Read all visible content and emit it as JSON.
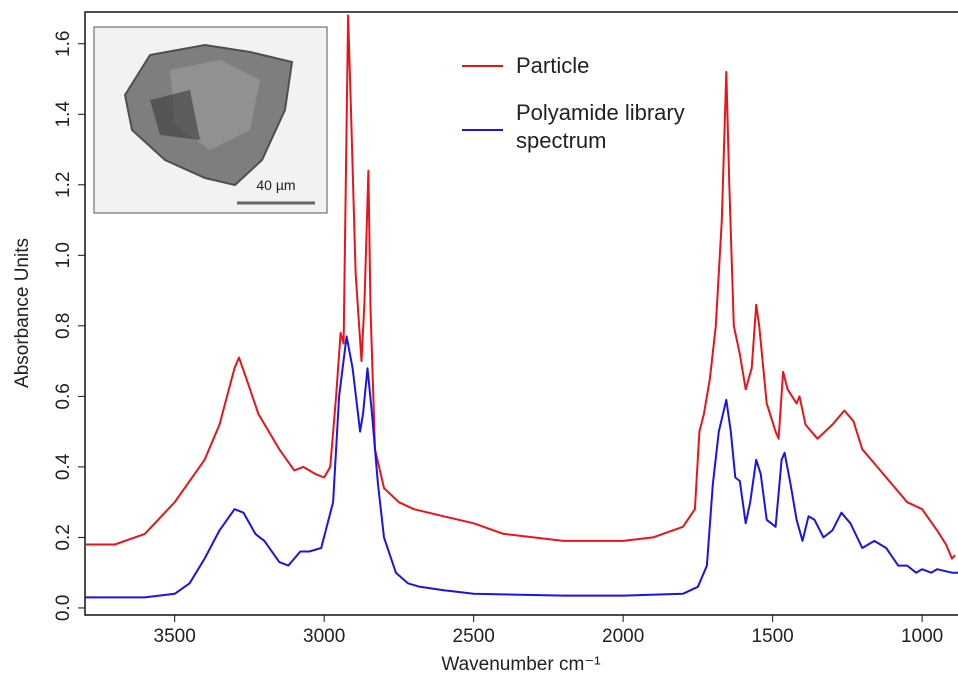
{
  "chart_data": {
    "type": "line",
    "x_label": "Wavenumber cm⁻¹",
    "y_label": "Absorbance Units",
    "inset_scale_label": "40 µm",
    "xlim": [
      3800,
      880
    ],
    "ylim": [
      -0.02,
      1.69
    ],
    "xticks": [
      3500,
      3000,
      2500,
      2000,
      1500,
      1000
    ],
    "yticks": [
      {
        "value": 0,
        "label": "0.0"
      },
      0.2,
      0.4,
      0.6,
      0.8,
      {
        "value": 1,
        "label": "1.0"
      },
      1.2,
      1.4,
      1.6
    ],
    "grid": false,
    "legend": "top",
    "series": [
      {
        "name": "Particle",
        "color": "#e8141a",
        "x": [
          3800,
          3700,
          3600,
          3500,
          3400,
          3350,
          3300,
          3285,
          3260,
          3220,
          3150,
          3100,
          3070,
          3030,
          3000,
          2980,
          2960,
          2945,
          2935,
          2920,
          2910,
          2895,
          2875,
          2865,
          2852,
          2845,
          2830,
          2800,
          2750,
          2700,
          2600,
          2500,
          2400,
          2300,
          2200,
          2100,
          2000,
          1900,
          1800,
          1760,
          1745,
          1730,
          1710,
          1690,
          1670,
          1655,
          1645,
          1630,
          1610,
          1590,
          1570,
          1555,
          1545,
          1520,
          1490,
          1480,
          1465,
          1450,
          1420,
          1410,
          1390,
          1350,
          1300,
          1260,
          1230,
          1200,
          1150,
          1100,
          1050,
          1000,
          950,
          920,
          900,
          890
        ],
        "values": [
          0.18,
          0.18,
          0.21,
          0.3,
          0.42,
          0.52,
          0.68,
          0.71,
          0.65,
          0.55,
          0.45,
          0.39,
          0.4,
          0.38,
          0.37,
          0.4,
          0.6,
          0.78,
          0.75,
          1.68,
          1.4,
          0.95,
          0.7,
          0.87,
          1.24,
          0.85,
          0.45,
          0.34,
          0.3,
          0.28,
          0.26,
          0.24,
          0.21,
          0.2,
          0.19,
          0.19,
          0.19,
          0.2,
          0.23,
          0.28,
          0.5,
          0.55,
          0.65,
          0.8,
          1.1,
          1.52,
          1.2,
          0.8,
          0.72,
          0.62,
          0.68,
          0.86,
          0.8,
          0.58,
          0.5,
          0.48,
          0.67,
          0.62,
          0.58,
          0.6,
          0.52,
          0.48,
          0.52,
          0.56,
          0.53,
          0.45,
          0.4,
          0.35,
          0.3,
          0.28,
          0.22,
          0.18,
          0.14,
          0.15
        ]
      },
      {
        "name": "Polyamide library spectrum",
        "color": "#1a14e8",
        "x": [
          3800,
          3600,
          3500,
          3450,
          3400,
          3350,
          3300,
          3270,
          3230,
          3200,
          3150,
          3120,
          3080,
          3050,
          3010,
          2970,
          2950,
          2925,
          2905,
          2880,
          2870,
          2855,
          2840,
          2820,
          2800,
          2760,
          2720,
          2680,
          2600,
          2500,
          2200,
          2000,
          1800,
          1750,
          1720,
          1700,
          1680,
          1655,
          1640,
          1625,
          1610,
          1590,
          1575,
          1555,
          1540,
          1520,
          1490,
          1470,
          1460,
          1440,
          1420,
          1400,
          1380,
          1360,
          1330,
          1300,
          1270,
          1240,
          1200,
          1160,
          1120,
          1080,
          1050,
          1020,
          1000,
          970,
          950,
          900,
          880
        ],
        "values": [
          0.03,
          0.03,
          0.04,
          0.07,
          0.14,
          0.22,
          0.28,
          0.27,
          0.21,
          0.19,
          0.13,
          0.12,
          0.16,
          0.16,
          0.17,
          0.3,
          0.6,
          0.77,
          0.68,
          0.5,
          0.55,
          0.68,
          0.55,
          0.35,
          0.2,
          0.1,
          0.07,
          0.06,
          0.05,
          0.04,
          0.035,
          0.035,
          0.04,
          0.06,
          0.12,
          0.35,
          0.5,
          0.59,
          0.5,
          0.37,
          0.36,
          0.24,
          0.3,
          0.42,
          0.38,
          0.25,
          0.23,
          0.42,
          0.44,
          0.35,
          0.25,
          0.19,
          0.26,
          0.25,
          0.2,
          0.22,
          0.27,
          0.24,
          0.17,
          0.19,
          0.17,
          0.12,
          0.12,
          0.1,
          0.11,
          0.1,
          0.11,
          0.1,
          0.1
        ]
      }
    ]
  }
}
